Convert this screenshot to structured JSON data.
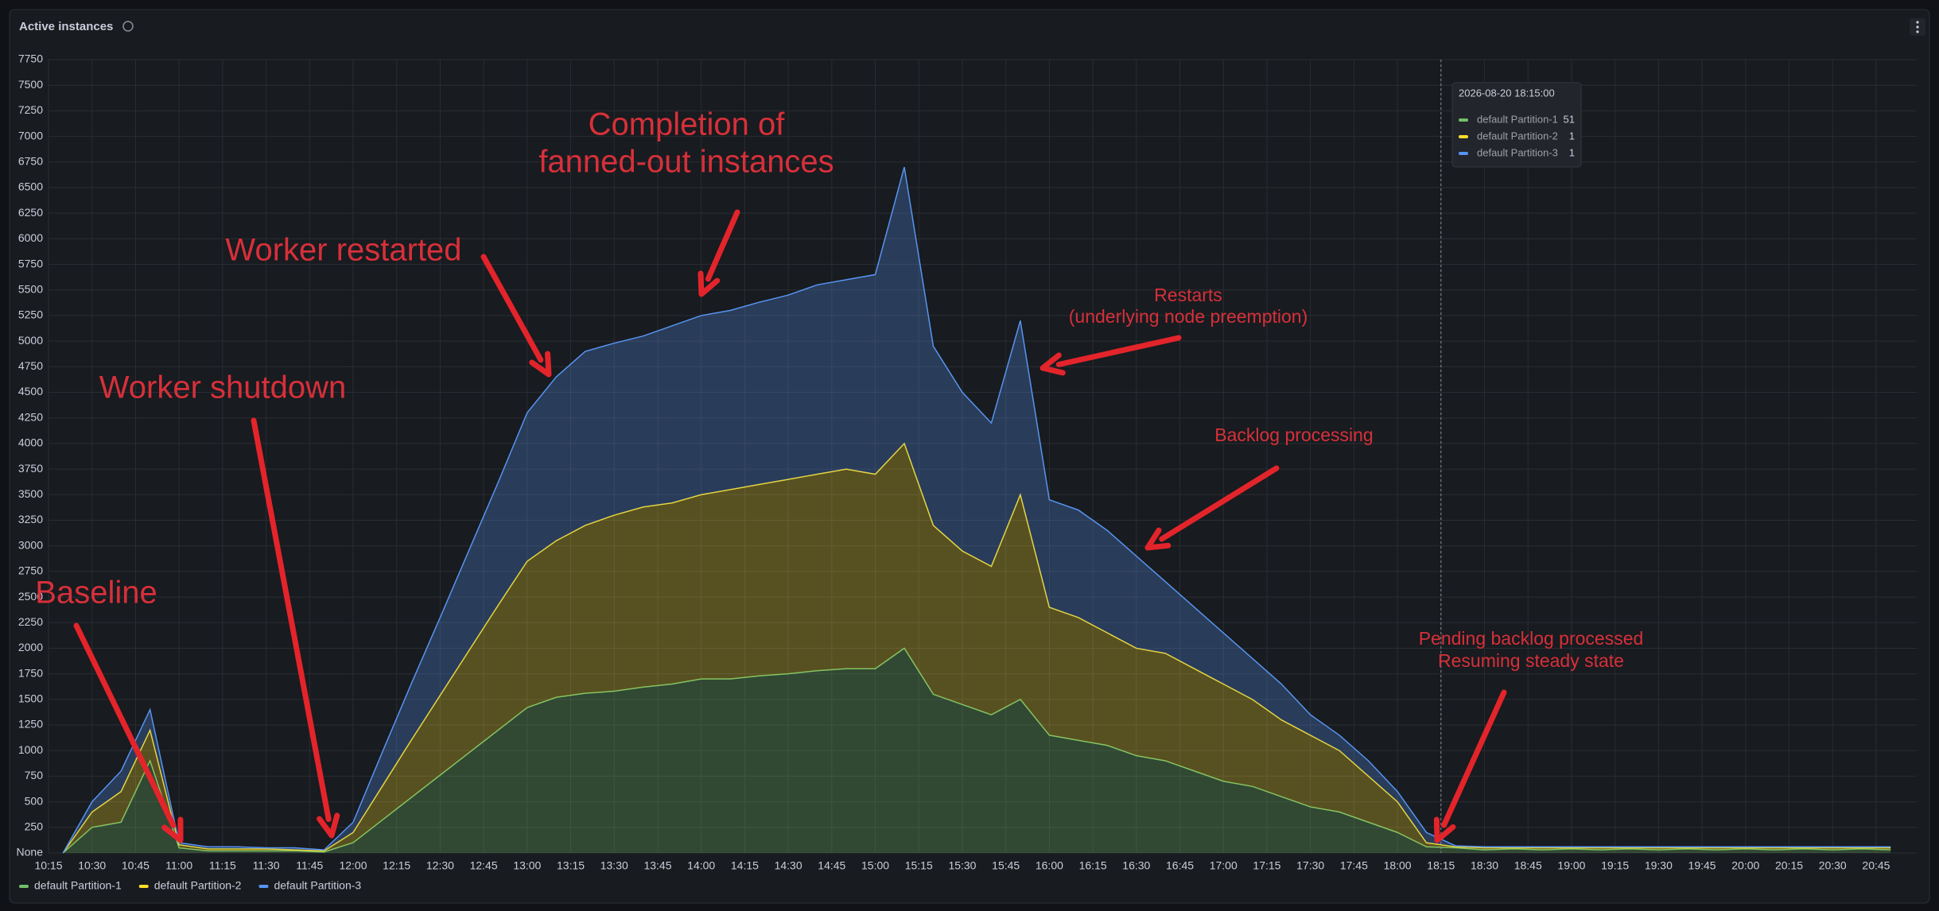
{
  "chart_data": {
    "type": "stacked-area",
    "title": "Active instances",
    "xlim": [
      "10:15",
      "20:59"
    ],
    "xticks": [
      "10:15",
      "10:30",
      "10:45",
      "11:00",
      "11:15",
      "11:30",
      "11:45",
      "12:00",
      "12:15",
      "12:30",
      "12:45",
      "13:00",
      "13:15",
      "13:30",
      "13:45",
      "14:00",
      "14:15",
      "14:30",
      "14:45",
      "15:00",
      "15:15",
      "15:30",
      "15:45",
      "16:00",
      "16:15",
      "16:30",
      "16:45",
      "17:00",
      "17:15",
      "17:30",
      "17:45",
      "18:00",
      "18:15",
      "18:30",
      "18:45",
      "19:00",
      "19:15",
      "19:30",
      "19:45",
      "20:00",
      "20:15",
      "20:30",
      "20:45"
    ],
    "ylim": [
      0,
      7750
    ],
    "yticks": [
      {
        "value": 0,
        "label": "None"
      },
      250,
      500,
      750,
      1000,
      1250,
      1500,
      1750,
      2000,
      2250,
      2500,
      2750,
      3000,
      3250,
      3500,
      3750,
      4000,
      4250,
      4500,
      4750,
      5000,
      5250,
      5500,
      5750,
      6000,
      6250,
      6500,
      6750,
      7000,
      7250,
      7500,
      7750
    ],
    "grid": true,
    "legend": "bottom",
    "x": [
      "10:20",
      "10:30",
      "10:40",
      "10:50",
      "11:00",
      "11:10",
      "11:20",
      "11:30",
      "11:40",
      "11:50",
      "12:00",
      "12:10",
      "12:20",
      "12:30",
      "12:40",
      "12:50",
      "13:00",
      "13:10",
      "13:20",
      "13:30",
      "13:40",
      "13:50",
      "14:00",
      "14:10",
      "14:20",
      "14:30",
      "14:40",
      "14:50",
      "15:00",
      "15:10",
      "15:20",
      "15:30",
      "15:40",
      "15:50",
      "16:00",
      "16:10",
      "16:20",
      "16:30",
      "16:40",
      "16:50",
      "17:00",
      "17:10",
      "17:20",
      "17:30",
      "17:40",
      "17:50",
      "18:00",
      "18:10",
      "18:20",
      "18:30",
      "18:40",
      "18:50",
      "19:00",
      "19:10",
      "19:20",
      "19:30",
      "19:40",
      "19:50",
      "20:00",
      "20:10",
      "20:20",
      "20:30",
      "20:40",
      "20:50"
    ],
    "series": [
      {
        "name": "default Partition-1",
        "color": "#73bf69",
        "values": [
          0,
          250,
          300,
          900,
          50,
          20,
          20,
          20,
          20,
          10,
          100,
          320,
          540,
          760,
          980,
          1200,
          1420,
          1520,
          1560,
          1580,
          1620,
          1650,
          1700,
          1700,
          1730,
          1750,
          1780,
          1800,
          1800,
          2000,
          1550,
          1450,
          1350,
          1500,
          1150,
          1100,
          1050,
          950,
          900,
          800,
          700,
          650,
          550,
          450,
          400,
          300,
          200,
          60,
          50,
          30,
          40,
          30,
          40,
          30,
          40,
          30,
          40,
          30,
          40,
          30,
          40,
          30,
          40,
          30
        ]
      },
      {
        "name": "default Partition-2",
        "color": "#fade2a",
        "values": [
          0,
          150,
          300,
          300,
          30,
          20,
          20,
          20,
          10,
          10,
          100,
          330,
          560,
          780,
          1000,
          1220,
          1430,
          1530,
          1640,
          1720,
          1760,
          1770,
          1800,
          1850,
          1870,
          1900,
          1920,
          1950,
          1900,
          2000,
          1650,
          1500,
          1450,
          2000,
          1250,
          1200,
          1100,
          1050,
          1050,
          1000,
          950,
          850,
          750,
          700,
          600,
          450,
          300,
          40,
          10,
          20,
          10,
          20,
          10,
          20,
          10,
          20,
          10,
          20,
          10,
          20,
          10,
          20,
          10,
          20
        ]
      },
      {
        "name": "default Partition-3",
        "color": "#5794f2",
        "values": [
          0,
          100,
          200,
          200,
          20,
          20,
          20,
          10,
          20,
          10,
          100,
          330,
          550,
          760,
          980,
          1200,
          1450,
          1600,
          1700,
          1680,
          1670,
          1730,
          1750,
          1750,
          1780,
          1800,
          1850,
          1850,
          1950,
          2700,
          1750,
          1550,
          1400,
          1700,
          1050,
          1050,
          1000,
          900,
          700,
          600,
          500,
          400,
          350,
          200,
          150,
          150,
          100,
          100,
          10,
          10,
          10,
          10,
          10,
          10,
          10,
          10,
          10,
          10,
          10,
          10,
          10,
          10,
          10,
          10
        ]
      }
    ],
    "tooltip": {
      "time": "2026-08-20 18:15:00",
      "values": [
        51,
        1,
        1
      ]
    },
    "annotations": [
      {
        "lines": [
          "Completion of",
          "fanned-out instances"
        ]
      },
      {
        "lines": [
          "Worker restarted"
        ]
      },
      {
        "lines": [
          "Worker shutdown"
        ]
      },
      {
        "lines": [
          "Baseline"
        ]
      },
      {
        "lines": [
          "Restarts",
          "(underlying node preemption)"
        ]
      },
      {
        "lines": [
          "Backlog processing"
        ]
      },
      {
        "lines": [
          "Pending backlog processed",
          "Resuming steady state"
        ]
      }
    ]
  }
}
